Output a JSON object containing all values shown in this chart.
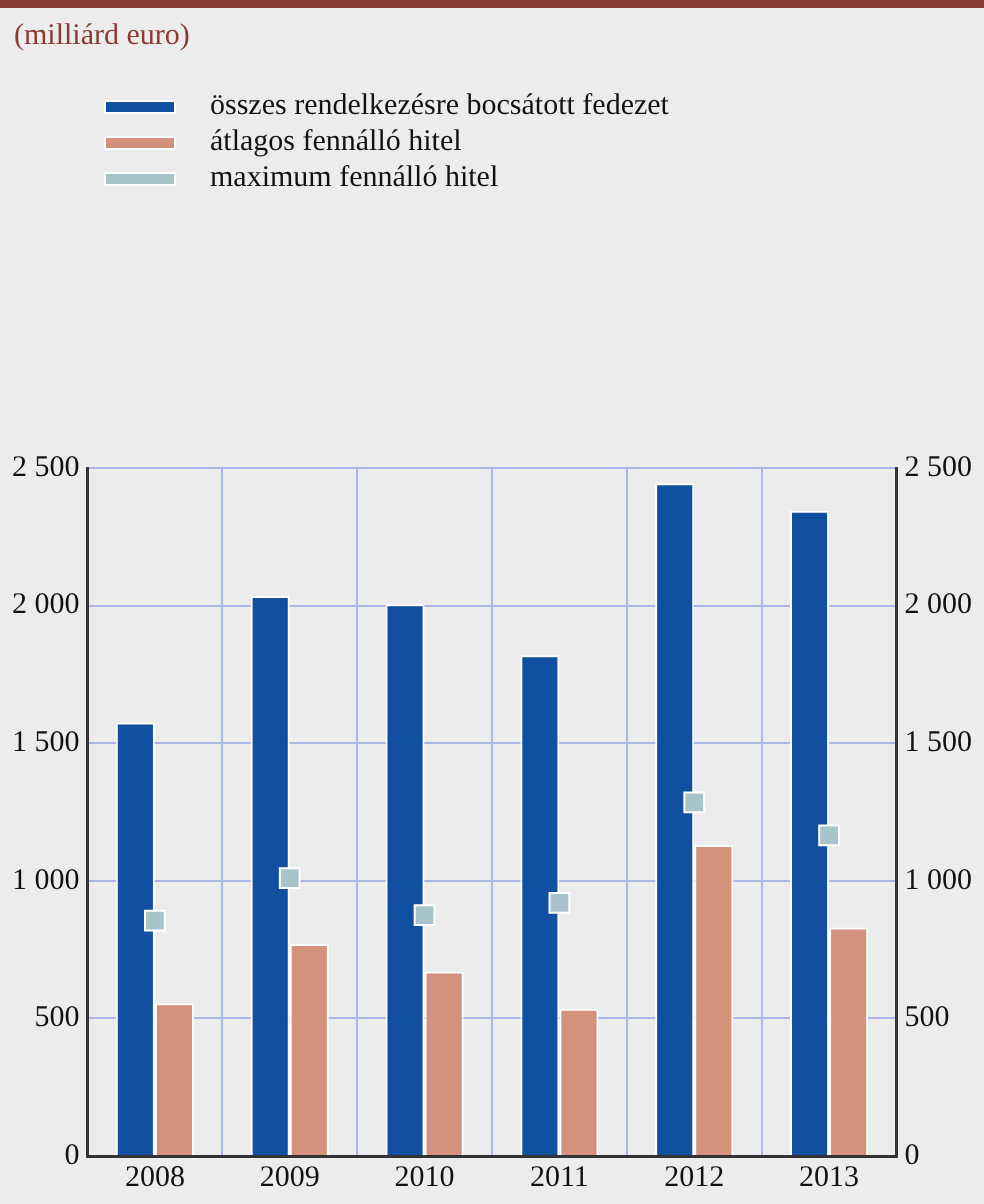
{
  "chart_data": {
    "type": "bar",
    "title": "(milliárd euro)",
    "categories": [
      "2008",
      "2009",
      "2010",
      "2011",
      "2012",
      "2013"
    ],
    "series": [
      {
        "name": "összes rendelkezésre bocsátott fedezet",
        "color": "#1150a0",
        "values": [
          1575,
          2035,
          2005,
          1820,
          2445,
          2345
        ]
      },
      {
        "name": "átlagos fennálló hitel",
        "color": "#d4917c",
        "values": [
          555,
          770,
          670,
          535,
          1130,
          830
        ]
      },
      {
        "name": "maximum fennálló hitel",
        "type": "scatter",
        "color": "#a9c3cb",
        "values": [
          855,
          1010,
          875,
          920,
          1285,
          1165
        ]
      }
    ],
    "ylim": [
      0,
      2500
    ],
    "yticks": [
      0,
      500,
      1000,
      1500,
      2000,
      2500
    ],
    "y2lim": [
      0,
      2500
    ],
    "y2ticks": [
      0,
      500,
      1000,
      1500,
      2000,
      2500
    ],
    "grid": true,
    "legend": "top",
    "marker": "square"
  }
}
